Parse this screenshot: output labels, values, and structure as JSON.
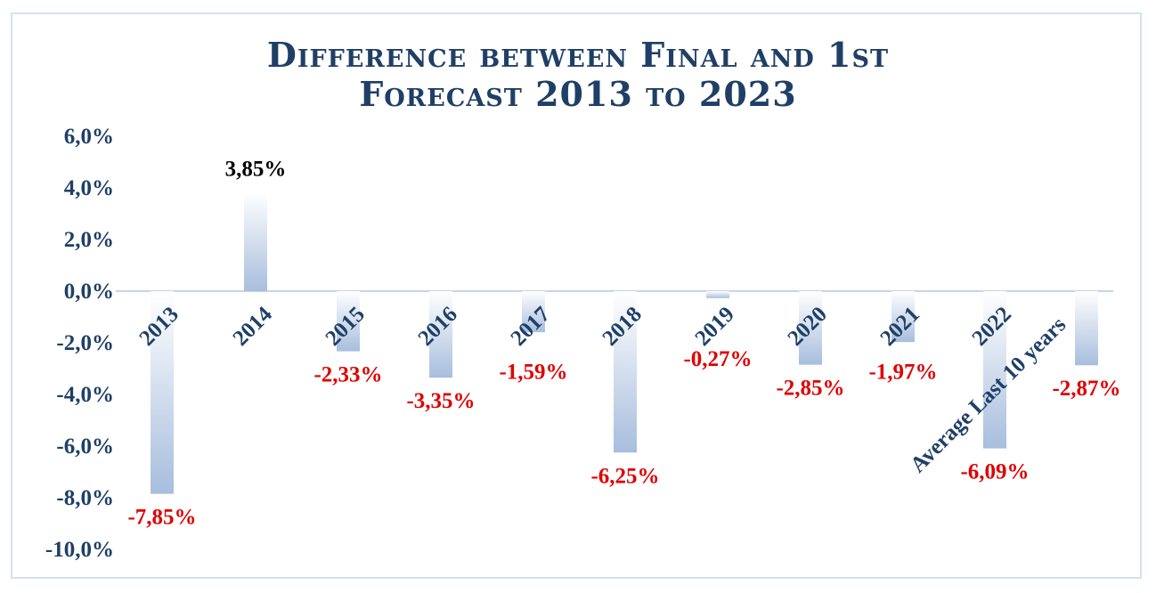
{
  "chart_data": {
    "type": "bar",
    "title_line1": "Difference between Final  and 1st",
    "title_line2": "Forecast 2013 to 2023",
    "categories": [
      "2013",
      "2014",
      "2015",
      "2016",
      "2017",
      "2018",
      "2019",
      "2020",
      "2021",
      "2022",
      "Average Last 10 years"
    ],
    "values": [
      -7.85,
      3.85,
      -2.33,
      -3.35,
      -1.59,
      -6.25,
      -0.27,
      -2.85,
      -1.97,
      -6.09,
      -2.87
    ],
    "data_labels": [
      "-7,85%",
      "3,85%",
      "-2,33%",
      "-3,35%",
      "-1,59%",
      "-6,25%",
      "-0,27%",
      "-2,85%",
      "-1,97%",
      "-6,09%",
      "-2,87%"
    ],
    "y_ticks": [
      "6,0%",
      "4,0%",
      "2,0%",
      "0,0%",
      "-2,0%",
      "-4,0%",
      "-6,0%",
      "-8,0%",
      "-10,0%"
    ],
    "y_tick_values": [
      6,
      4,
      2,
      0,
      -2,
      -4,
      -6,
      -8,
      -10
    ],
    "ylim": [
      -10,
      6
    ],
    "grid": false,
    "legend": "none",
    "colors": {
      "axis_text": "#1f3f66",
      "bar_top": "#ffffff",
      "bar_bottom": "#a7bedd",
      "negative_label": "#e00000",
      "positive_label": "#000000",
      "zero_line": "#c7d5e6"
    }
  }
}
